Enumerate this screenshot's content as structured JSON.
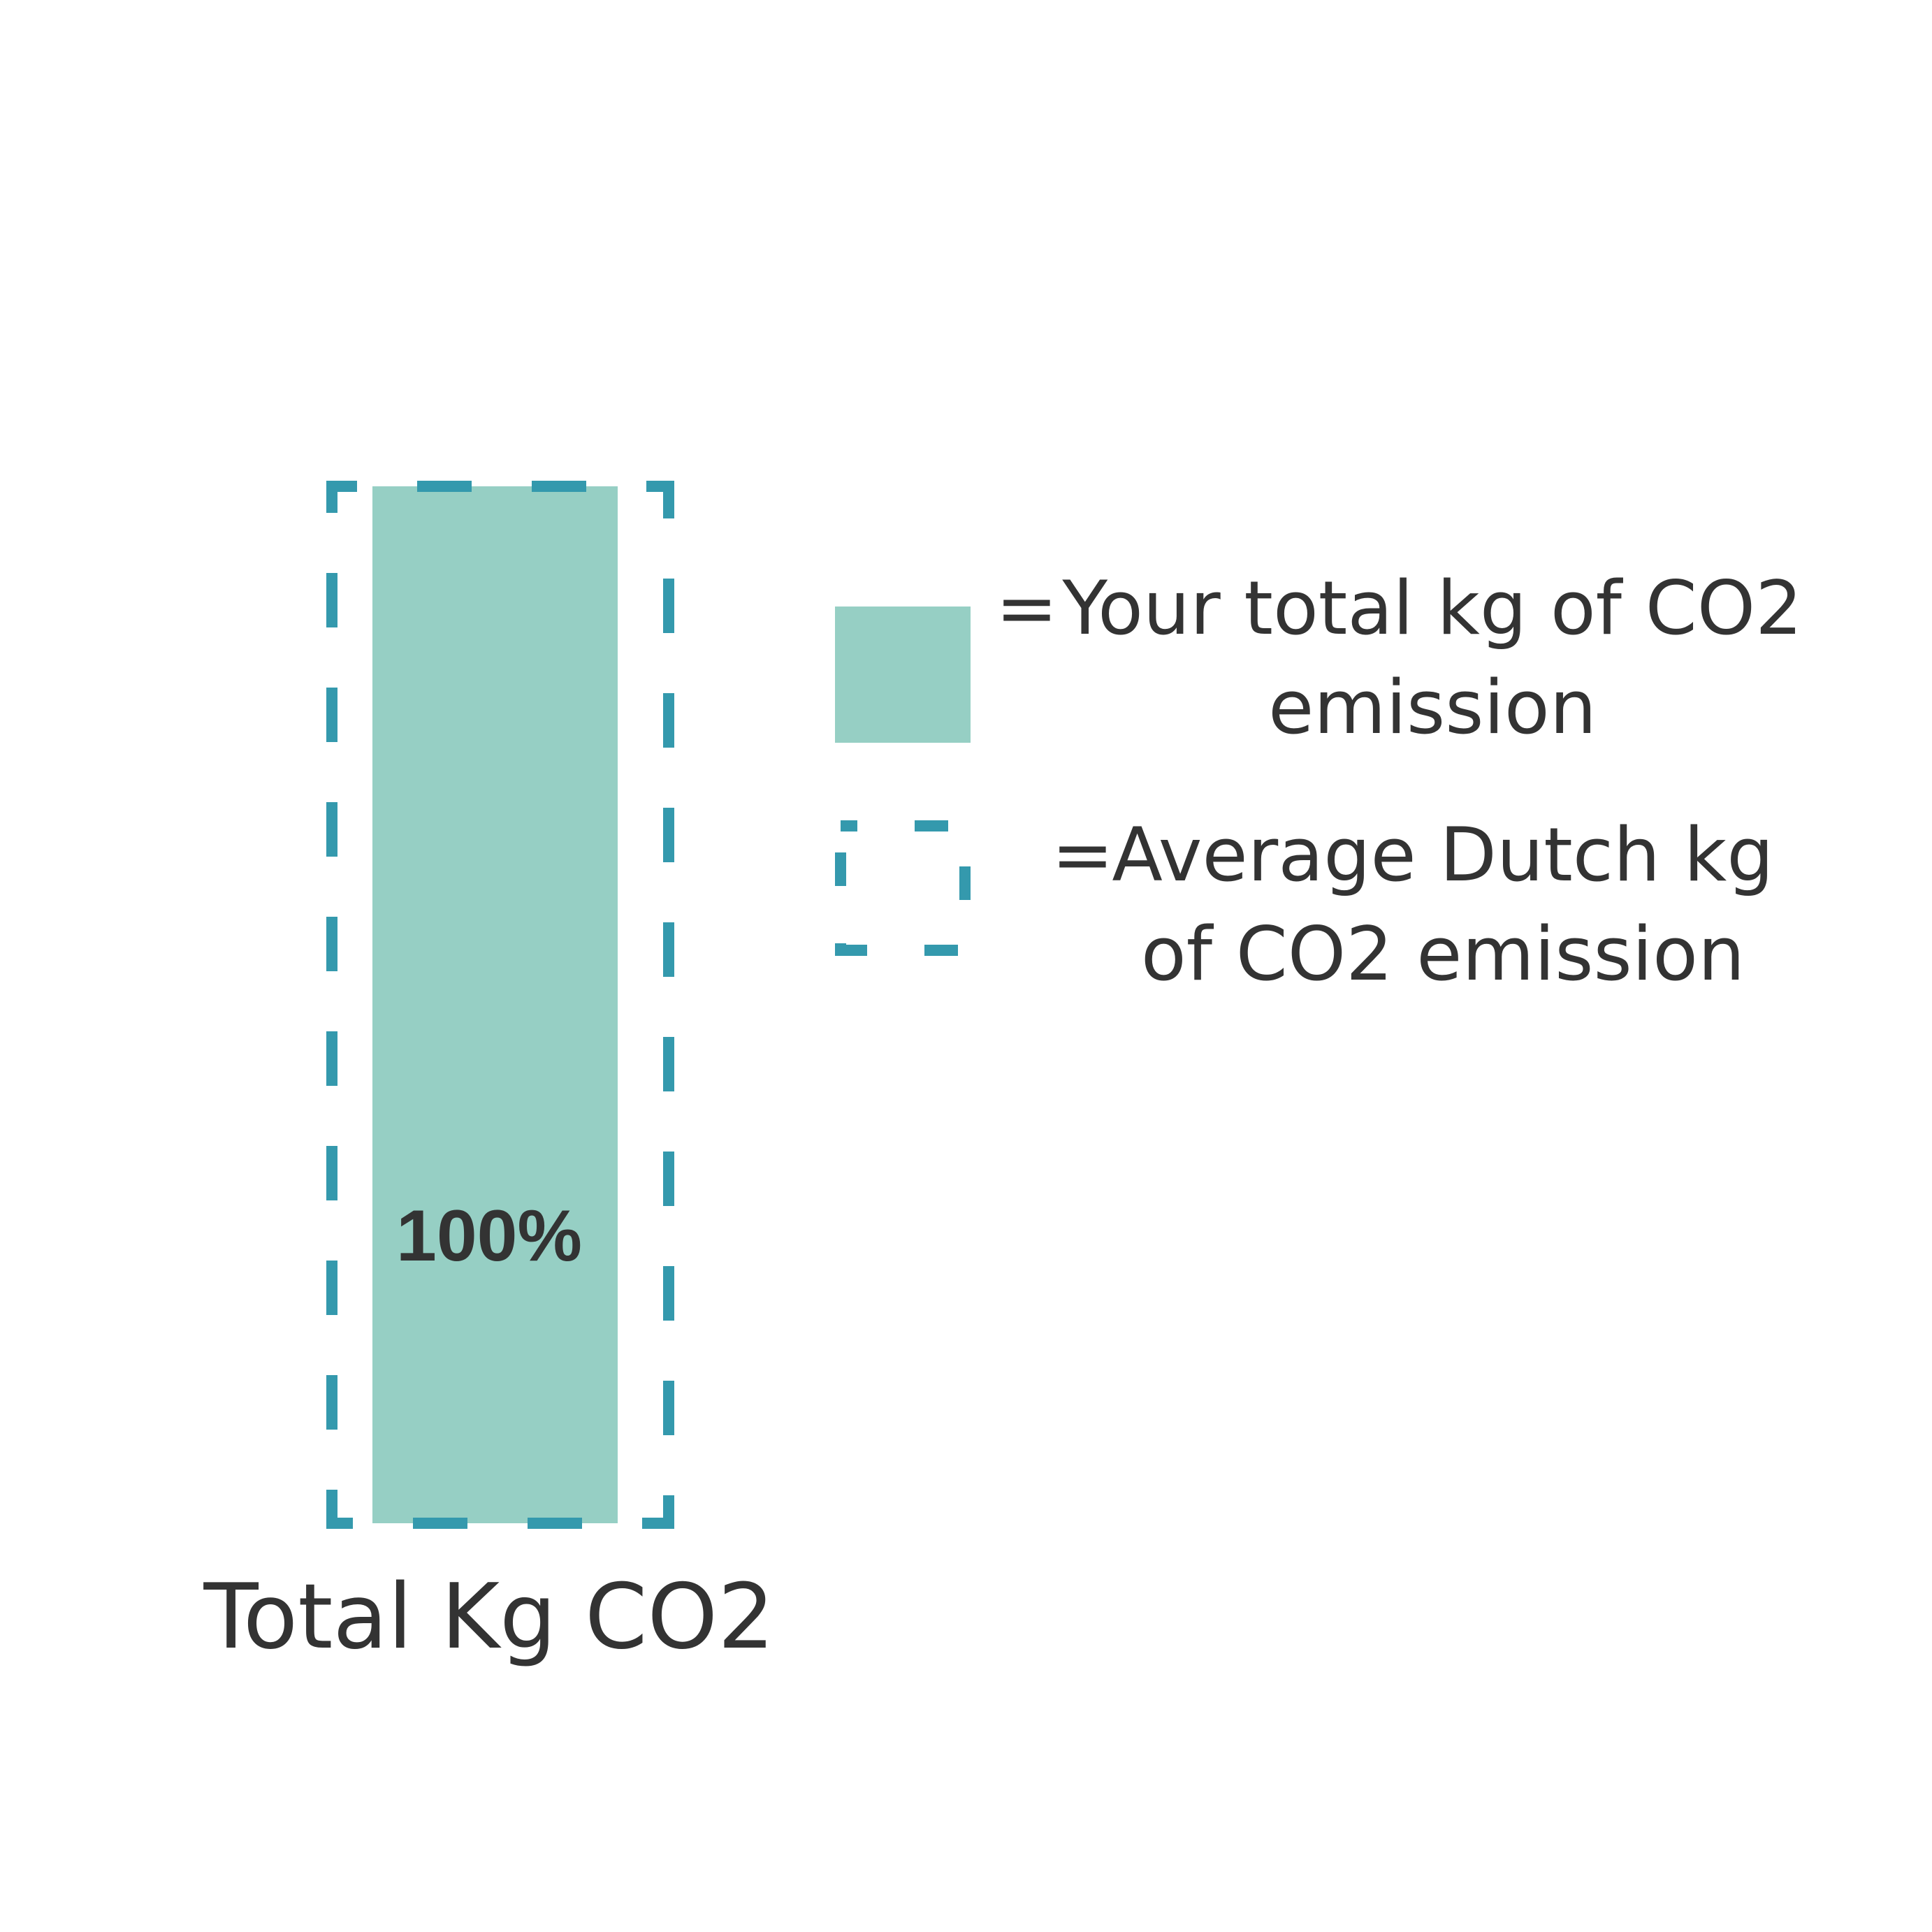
{
  "chart_data": {
    "type": "bar",
    "categories": [
      "Total Kg CO2"
    ],
    "series": [
      {
        "name": "= Your total kg of CO2 emission",
        "values": [
          100
        ],
        "data_labels": [
          "100%"
        ]
      },
      {
        "name": "= Average Dutch kg of CO2 emission",
        "values": [
          100
        ]
      }
    ],
    "ylim": [
      0,
      100
    ],
    "grid": false,
    "legend_position": "right",
    "title": "",
    "xlabel": "",
    "ylabel": ""
  },
  "legend": {
    "user": {
      "equals": "=",
      "line1": "Your total kg of CO2",
      "line2": "emission"
    },
    "average": {
      "equals": "=",
      "line1": "Average Dutch kg",
      "line2": "of CO2 emission"
    }
  },
  "colors": {
    "user_fill": "#96cfc4",
    "average_outline": "#3499ad",
    "text": "#333333"
  }
}
